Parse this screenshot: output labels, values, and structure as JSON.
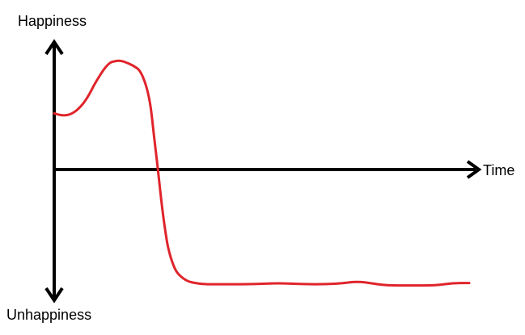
{
  "chart_data": {
    "type": "line",
    "title": "",
    "ylabel_top": "Happiness",
    "ylabel_bottom": "Unhappiness",
    "xlabel": "Time",
    "xlim": [
      0,
      100
    ],
    "ylim": [
      -1,
      1
    ],
    "grid": false,
    "colors": {
      "axis": "#000000",
      "line": "#e0242b"
    },
    "series": [
      {
        "x": [
          0,
          2,
          4,
          6,
          8,
          10,
          13,
          15,
          16,
          17,
          19,
          21,
          23,
          24,
          25,
          26,
          27,
          27.5,
          28.5,
          29.5,
          31,
          32.5,
          34,
          36,
          39,
          42,
          48,
          54,
          60,
          66,
          70,
          72,
          74,
          76,
          80,
          86,
          92,
          96,
          100
        ],
        "y": [
          0.48,
          0.46,
          0.47,
          0.52,
          0.61,
          0.75,
          0.91,
          0.93,
          0.93,
          0.92,
          0.89,
          0.84,
          0.62,
          0.3,
          0.0,
          -0.33,
          -0.58,
          -0.68,
          -0.8,
          -0.88,
          -0.93,
          -0.96,
          -0.97,
          -0.98,
          -0.98,
          -0.98,
          -0.98,
          -0.97,
          -0.98,
          -0.98,
          -0.97,
          -0.96,
          -0.96,
          -0.97,
          -0.99,
          -0.99,
          -0.99,
          -0.97,
          -0.97
        ]
      }
    ]
  }
}
